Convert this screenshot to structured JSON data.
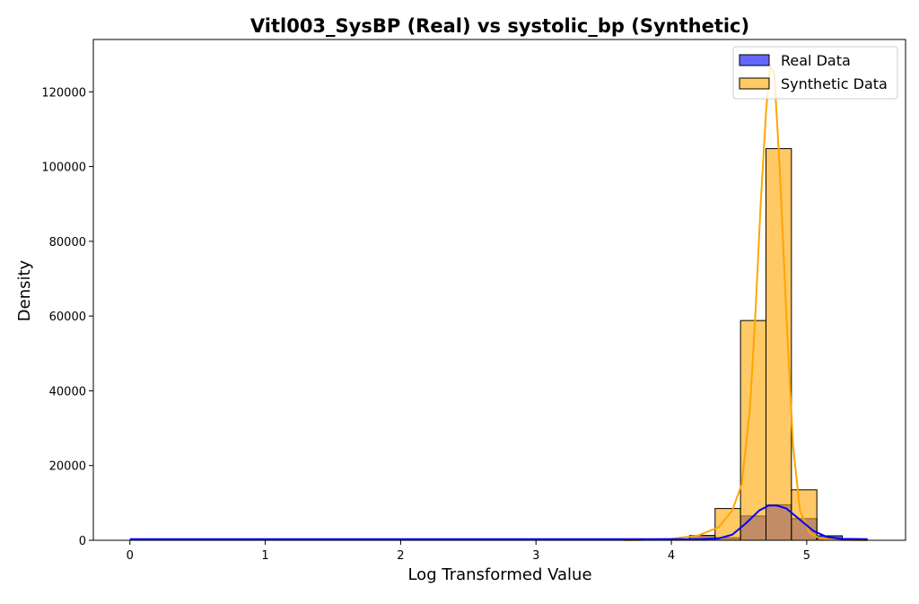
{
  "chart_data": {
    "type": "histogram",
    "title": "Vitl003_SysBP (Real) vs systolic_bp (Synthetic)",
    "xlabel": "Log Transformed Value",
    "ylabel": "Density",
    "xlim": [
      -0.27,
      5.73
    ],
    "ylim": [
      0,
      134000
    ],
    "xticks": [
      0,
      1,
      2,
      3,
      4,
      5
    ],
    "yticks": [
      0,
      20000,
      40000,
      60000,
      80000,
      100000,
      120000
    ],
    "grid": false,
    "legend_position": "top-right",
    "bin_width": 0.188,
    "series": [
      {
        "name": "Real Data",
        "color": "#0000ff",
        "bins": [
          {
            "x0": 4.135,
            "x1": 4.323,
            "value": 1200
          },
          {
            "x0": 4.323,
            "x1": 4.511,
            "value": 700
          },
          {
            "x0": 4.511,
            "x1": 4.699,
            "value": 6500
          },
          {
            "x0": 4.699,
            "x1": 4.887,
            "value": 9500
          },
          {
            "x0": 4.887,
            "x1": 5.075,
            "value": 5800
          },
          {
            "x0": 5.075,
            "x1": 5.263,
            "value": 1200
          }
        ],
        "kde": [
          [
            0,
            300
          ],
          [
            1,
            300
          ],
          [
            2,
            300
          ],
          [
            3,
            300
          ],
          [
            3.6,
            300
          ],
          [
            4.0,
            300
          ],
          [
            4.2,
            300
          ],
          [
            4.35,
            500
          ],
          [
            4.45,
            1500
          ],
          [
            4.55,
            4500
          ],
          [
            4.65,
            8000
          ],
          [
            4.72,
            9300
          ],
          [
            4.78,
            9300
          ],
          [
            4.85,
            8500
          ],
          [
            4.95,
            5500
          ],
          [
            5.05,
            2500
          ],
          [
            5.15,
            900
          ],
          [
            5.25,
            400
          ],
          [
            5.45,
            300
          ]
        ]
      },
      {
        "name": "Synthetic Data",
        "color": "#ffa500",
        "bins": [
          {
            "x0": 4.135,
            "x1": 4.323,
            "value": 1300
          },
          {
            "x0": 4.323,
            "x1": 4.511,
            "value": 8500
          },
          {
            "x0": 4.511,
            "x1": 4.699,
            "value": 58800
          },
          {
            "x0": 4.699,
            "x1": 4.887,
            "value": 104800
          },
          {
            "x0": 4.887,
            "x1": 5.075,
            "value": 13500
          },
          {
            "x0": 5.075,
            "x1": 5.263,
            "value": 500
          }
        ],
        "kde": [
          [
            3.65,
            0
          ],
          [
            3.8,
            100
          ],
          [
            4.0,
            400
          ],
          [
            4.2,
            1300
          ],
          [
            4.35,
            3500
          ],
          [
            4.45,
            8000
          ],
          [
            4.52,
            15000
          ],
          [
            4.58,
            35000
          ],
          [
            4.62,
            60000
          ],
          [
            4.66,
            90000
          ],
          [
            4.7,
            115000
          ],
          [
            4.73,
            127000
          ],
          [
            4.76,
            125000
          ],
          [
            4.8,
            100000
          ],
          [
            4.85,
            60000
          ],
          [
            4.9,
            25000
          ],
          [
            4.95,
            8000
          ],
          [
            5.02,
            2000
          ],
          [
            5.1,
            500
          ],
          [
            5.25,
            100
          ],
          [
            5.45,
            0
          ]
        ]
      }
    ]
  }
}
